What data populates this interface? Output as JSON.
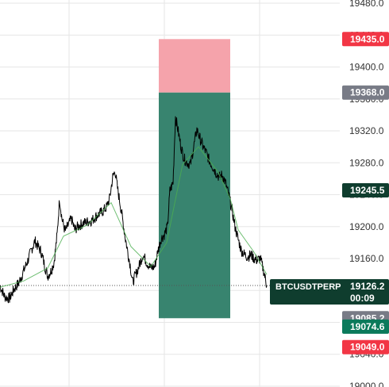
{
  "chart_data": {
    "type": "line",
    "symbol": "BTCUSDTPERP",
    "countdown": "00:09",
    "y_ticks": [
      "19480.0",
      "19440.0",
      "19400.0",
      "19360.0",
      "19320.0",
      "19280.0",
      "19240.0",
      "19200.0",
      "19160.0",
      "19120.0",
      "19080.0",
      "19040.0",
      "19000.0"
    ],
    "ylim": [
      18999,
      19484
    ],
    "grid": true,
    "series": [
      {
        "color": "#000000",
        "points": [
          [
            0,
            19126
          ],
          [
            6,
            19112
          ],
          [
            12,
            19110
          ],
          [
            18,
            19122
          ],
          [
            24,
            19130
          ],
          [
            30,
            19145
          ],
          [
            36,
            19160
          ],
          [
            40,
            19172
          ],
          [
            44,
            19182
          ],
          [
            48,
            19175
          ],
          [
            52,
            19168
          ],
          [
            56,
            19152
          ],
          [
            60,
            19138
          ],
          [
            64,
            19144
          ],
          [
            68,
            19155
          ],
          [
            72,
            19190
          ],
          [
            75,
            19235
          ],
          [
            78,
            19210
          ],
          [
            82,
            19194
          ],
          [
            86,
            19202
          ],
          [
            90,
            19210
          ],
          [
            94,
            19196
          ],
          [
            98,
            19200
          ],
          [
            104,
            19204
          ],
          [
            110,
            19206
          ],
          [
            116,
            19208
          ],
          [
            122,
            19214
          ],
          [
            128,
            19218
          ],
          [
            134,
            19224
          ],
          [
            138,
            19235
          ],
          [
            142,
            19262
          ],
          [
            145,
            19270
          ],
          [
            148,
            19248
          ],
          [
            152,
            19225
          ],
          [
            155,
            19205
          ],
          [
            158,
            19185
          ],
          [
            161,
            19168
          ],
          [
            164,
            19152
          ],
          [
            167,
            19130
          ],
          [
            171,
            19140
          ],
          [
            175,
            19150
          ],
          [
            180,
            19165
          ],
          [
            185,
            19155
          ],
          [
            190,
            19148
          ],
          [
            195,
            19150
          ],
          [
            199,
            19170
          ],
          [
            203,
            19185
          ],
          [
            207,
            19190
          ],
          [
            211,
            19200
          ],
          [
            214,
            19245
          ],
          [
            218,
            19255
          ],
          [
            221,
            19338
          ],
          [
            224,
            19322
          ],
          [
            228,
            19300
          ],
          [
            232,
            19285
          ],
          [
            236,
            19280
          ],
          [
            240,
            19278
          ],
          [
            244,
            19300
          ],
          [
            248,
            19322
          ],
          [
            252,
            19310
          ],
          [
            256,
            19300
          ],
          [
            260,
            19292
          ],
          [
            264,
            19282
          ],
          [
            268,
            19275
          ],
          [
            272,
            19268
          ],
          [
            276,
            19262
          ],
          [
            280,
            19265
          ],
          [
            284,
            19255
          ],
          [
            288,
            19240
          ],
          [
            292,
            19222
          ],
          [
            296,
            19200
          ],
          [
            300,
            19184
          ],
          [
            304,
            19170
          ],
          [
            308,
            19165
          ],
          [
            312,
            19162
          ],
          [
            316,
            19165
          ],
          [
            320,
            19160
          ],
          [
            324,
            19158
          ],
          [
            328,
            19160
          ],
          [
            332,
            19145
          ],
          [
            336,
            19126
          ]
        ]
      },
      {
        "color": "#4caf50",
        "points": [
          [
            0,
            19124
          ],
          [
            30,
            19132
          ],
          [
            60,
            19148
          ],
          [
            80,
            19188
          ],
          [
            110,
            19202
          ],
          [
            140,
            19230
          ],
          [
            165,
            19175
          ],
          [
            190,
            19150
          ],
          [
            210,
            19180
          ],
          [
            230,
            19278
          ],
          [
            250,
            19300
          ],
          [
            275,
            19268
          ],
          [
            290,
            19235
          ],
          [
            300,
            19196
          ],
          [
            320,
            19168
          ],
          [
            336,
            19140
          ]
        ]
      }
    ],
    "current_price_line": 19126.2,
    "position": {
      "entry": 19368.0,
      "target": 19085.2,
      "stop": 19435.0,
      "x_start": 200,
      "x_end": 290
    },
    "price_tags": [
      {
        "label": "19435.0",
        "value": 19435.0,
        "color": "#f23645"
      },
      {
        "label": "19368.0",
        "value": 19368.0,
        "color": "#787b86"
      },
      {
        "label": "19245.5",
        "value": 19245.5,
        "color": "#0f3d2e"
      },
      {
        "label": "19085.2",
        "value": 19085.2,
        "color": "#787b86"
      },
      {
        "label": "19074.6",
        "value": 19074.6,
        "color": "#0b7a5b"
      },
      {
        "label": "19049.0",
        "value": 19049.0,
        "color": "#f23645"
      }
    ],
    "last_price": {
      "label": "19126.2",
      "value": 19126.2,
      "color": "#0f3d2e"
    },
    "colors": {
      "stop_zone": "#f5a3ab",
      "target_zone": "#38846f",
      "grid": "#e6e6e6",
      "axis_text": "#333333"
    }
  }
}
